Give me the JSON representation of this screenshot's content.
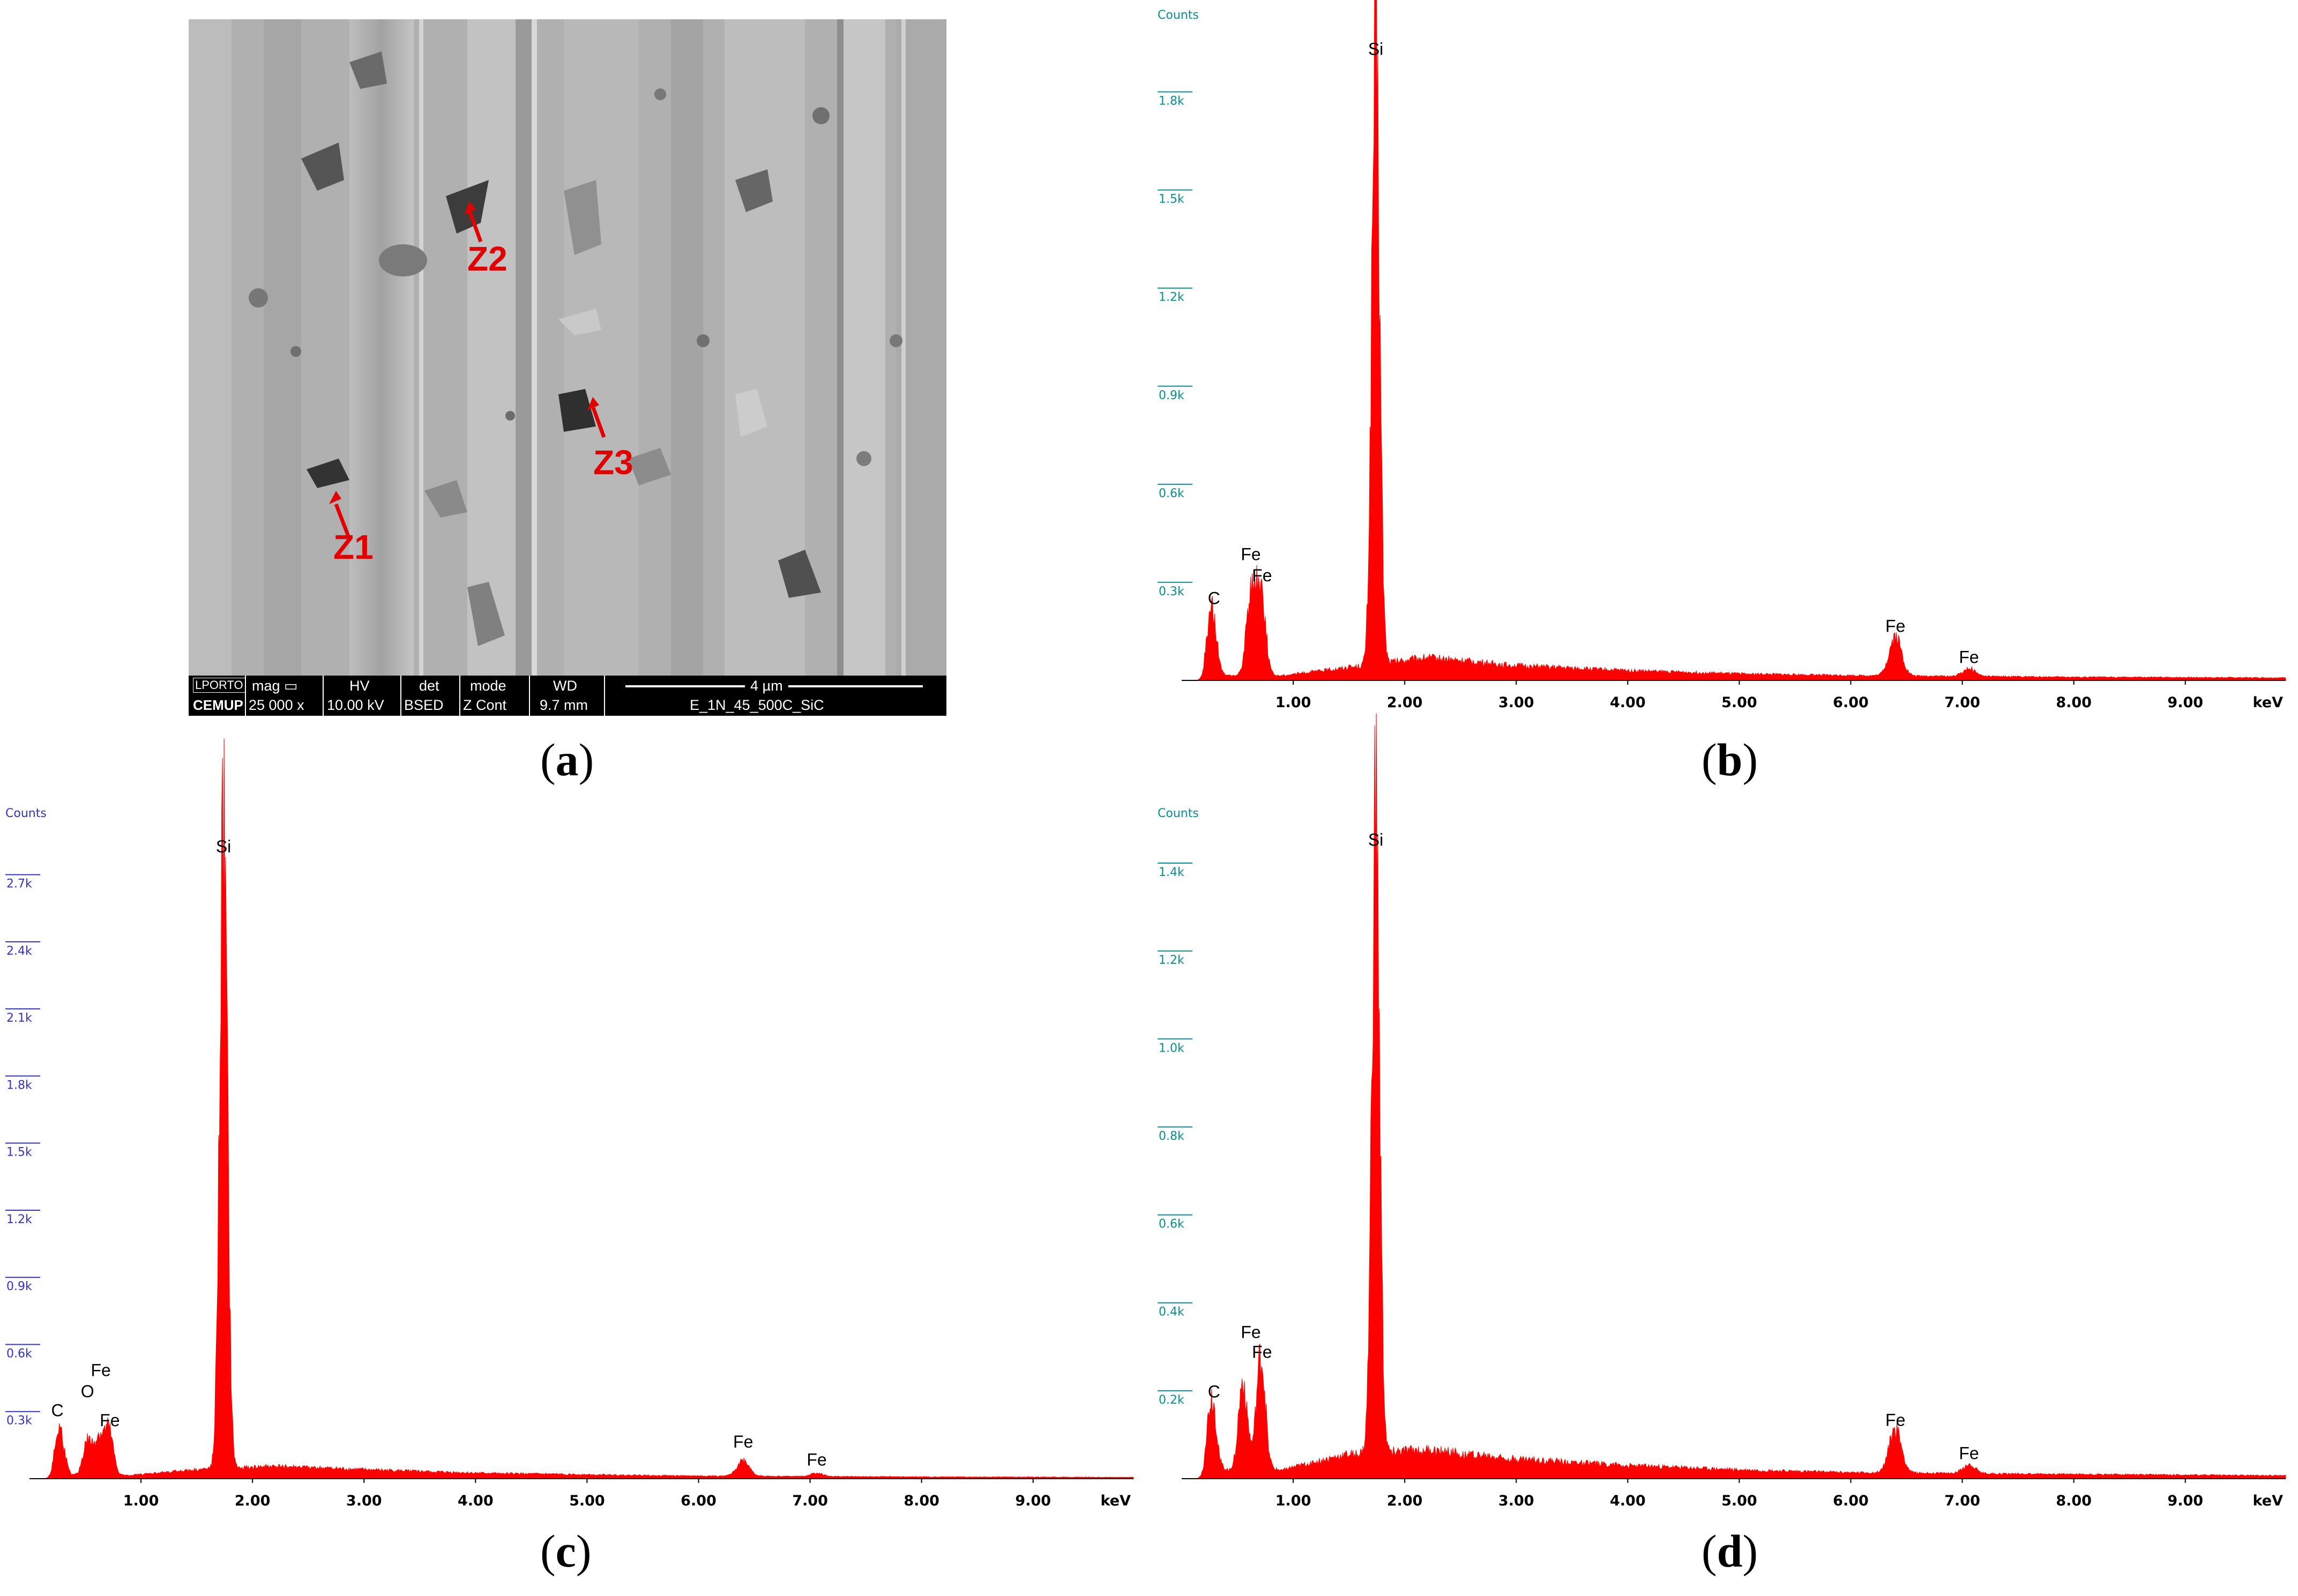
{
  "figure": {
    "caption_a": "a",
    "caption_b": "b",
    "caption_c": "c",
    "caption_d": "d"
  },
  "sem_image": {
    "zones": [
      "Z1",
      "Z2",
      "Z3"
    ],
    "databar": {
      "logo_top": "LPORTO",
      "logo_bottom": "CEMUP",
      "mag_label": "mag ▭",
      "mag_value": "25 000 x",
      "hv_label": "HV",
      "hv_value": "10.00 kV",
      "det_label": "det",
      "det_value": "BSED",
      "mode_label": "mode",
      "mode_value": "Z Cont",
      "wd_label": "WD",
      "wd_value": "9.7 mm",
      "scale_label": "4 µm",
      "sample_name": "E_1N_45_500C_SiC"
    }
  },
  "chart_data": [
    {
      "panel": "b",
      "type": "line",
      "title": "",
      "ylabel": "Counts",
      "xlabel": "keV",
      "x_ticks": [
        "1.00",
        "2.00",
        "3.00",
        "4.00",
        "5.00",
        "6.00",
        "7.00",
        "8.00",
        "9.00"
      ],
      "y_ticks": [
        "0.3k",
        "0.6k",
        "0.9k",
        "1.2k",
        "1.5k",
        "1.8k"
      ],
      "y_tick_color": "#0a8f8f",
      "series_color": "#ff0000",
      "xlim": [
        0,
        9.9
      ],
      "ylim": [
        0,
        1950
      ],
      "peaks": [
        {
          "element": "C",
          "kev": 0.27,
          "counts": 210
        },
        {
          "element": "Fe",
          "kev": 0.62,
          "counts": 250
        },
        {
          "element": "Fe",
          "kev": 0.71,
          "counts": 270
        },
        {
          "element": "Si",
          "kev": 1.74,
          "counts": 1900
        },
        {
          "element": "Fe",
          "kev": 6.4,
          "counts": 120
        },
        {
          "element": "Fe",
          "kev": 7.06,
          "counts": 25
        }
      ],
      "background_counts": {
        "kev": [
          0.9,
          1.5,
          2.2,
          3.0,
          4.0,
          5.0,
          6.0,
          8.0,
          9.9
        ],
        "counts": [
          15,
          40,
          70,
          45,
          30,
          20,
          15,
          10,
          8
        ]
      },
      "peak_labels": [
        {
          "text": "Si",
          "kev": 1.74,
          "counts": 1900
        },
        {
          "text": "C",
          "kev": 0.29,
          "counts": 220
        },
        {
          "text": "Fe",
          "kev": 0.62,
          "counts": 355
        },
        {
          "text": "Fe",
          "kev": 0.72,
          "counts": 290
        },
        {
          "text": "Fe",
          "kev": 6.4,
          "counts": 135
        },
        {
          "text": "Fe",
          "kev": 7.06,
          "counts": 40
        }
      ]
    },
    {
      "panel": "c",
      "type": "line",
      "title": "",
      "ylabel": "Counts",
      "xlabel": "keV",
      "x_ticks": [
        "1.00",
        "2.00",
        "3.00",
        "4.00",
        "5.00",
        "6.00",
        "7.00",
        "8.00",
        "9.00"
      ],
      "y_ticks": [
        "0.3k",
        "0.6k",
        "0.9k",
        "1.2k",
        "1.5k",
        "1.8k",
        "2.1k",
        "2.4k",
        "2.7k"
      ],
      "y_tick_color": "#3333cc",
      "series_color": "#ff0000",
      "xlim": [
        0,
        9.9
      ],
      "ylim": [
        0,
        2850
      ],
      "peaks": [
        {
          "element": "C",
          "kev": 0.27,
          "counts": 210
        },
        {
          "element": "O",
          "kev": 0.52,
          "counts": 150
        },
        {
          "element": "Fe",
          "kev": 0.62,
          "counts": 160
        },
        {
          "element": "Fe",
          "kev": 0.71,
          "counts": 200
        },
        {
          "element": "Si",
          "kev": 1.74,
          "counts": 2780
        },
        {
          "element": "Fe",
          "kev": 6.4,
          "counts": 70
        },
        {
          "element": "Fe",
          "kev": 7.06,
          "counts": 15
        }
      ],
      "background_counts": {
        "kev": [
          0.9,
          1.5,
          2.2,
          3.0,
          4.0,
          5.0,
          6.0,
          8.0,
          9.9
        ],
        "counts": [
          15,
          40,
          55,
          40,
          25,
          18,
          12,
          8,
          6
        ]
      },
      "peak_labels": [
        {
          "text": "Si",
          "kev": 1.74,
          "counts": 2780
        },
        {
          "text": "C",
          "kev": 0.25,
          "counts": 260
        },
        {
          "text": "O",
          "kev": 0.52,
          "counts": 345
        },
        {
          "text": "Fe",
          "kev": 0.64,
          "counts": 440
        },
        {
          "text": "Fe",
          "kev": 0.72,
          "counts": 215
        },
        {
          "text": "Fe",
          "kev": 6.4,
          "counts": 120
        },
        {
          "text": "Fe",
          "kev": 7.06,
          "counts": 40
        }
      ]
    },
    {
      "panel": "d",
      "type": "line",
      "title": "",
      "ylabel": "Counts",
      "xlabel": "keV",
      "x_ticks": [
        "1.00",
        "2.00",
        "3.00",
        "4.00",
        "5.00",
        "6.00",
        "7.00",
        "8.00",
        "9.00"
      ],
      "y_ticks": [
        "0.2k",
        "0.4k",
        "0.6k",
        "0.8k",
        "1.0k",
        "1.2k",
        "1.4k"
      ],
      "y_tick_color": "#0a8f8f",
      "series_color": "#ff0000",
      "xlim": [
        0,
        9.9
      ],
      "ylim": [
        0,
        1450
      ],
      "peaks": [
        {
          "element": "C",
          "kev": 0.27,
          "counts": 165
        },
        {
          "element": "Fe",
          "kev": 0.55,
          "counts": 200
        },
        {
          "element": "Fe",
          "kev": 0.71,
          "counts": 255
        },
        {
          "element": "Si",
          "kev": 1.74,
          "counts": 1430
        },
        {
          "element": "Fe",
          "kev": 6.4,
          "counts": 100
        },
        {
          "element": "Fe",
          "kev": 7.06,
          "counts": 20
        }
      ],
      "background_counts": {
        "kev": [
          0.9,
          1.5,
          2.2,
          3.0,
          4.0,
          5.0,
          6.0,
          8.0,
          9.9
        ],
        "counts": [
          20,
          55,
          65,
          45,
          30,
          20,
          14,
          10,
          7
        ]
      },
      "peak_labels": [
        {
          "text": "Si",
          "kev": 1.74,
          "counts": 1430
        },
        {
          "text": "C",
          "kev": 0.29,
          "counts": 175
        },
        {
          "text": "Fe",
          "kev": 0.62,
          "counts": 310
        },
        {
          "text": "Fe",
          "kev": 0.72,
          "counts": 265
        },
        {
          "text": "Fe",
          "kev": 6.4,
          "counts": 110
        },
        {
          "text": "Fe",
          "kev": 7.06,
          "counts": 35
        }
      ]
    }
  ]
}
